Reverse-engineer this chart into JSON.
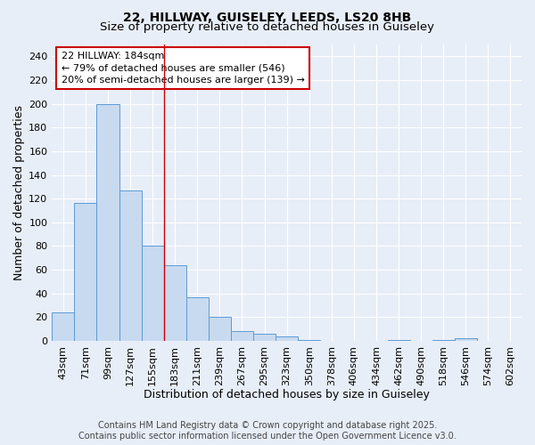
{
  "title1": "22, HILLWAY, GUISELEY, LEEDS, LS20 8HB",
  "title2": "Size of property relative to detached houses in Guiseley",
  "xlabel": "Distribution of detached houses by size in Guiseley",
  "ylabel": "Number of detached properties",
  "bins": [
    "43sqm",
    "71sqm",
    "99sqm",
    "127sqm",
    "155sqm",
    "183sqm",
    "211sqm",
    "239sqm",
    "267sqm",
    "295sqm",
    "323sqm",
    "350sqm",
    "378sqm",
    "406sqm",
    "434sqm",
    "462sqm",
    "490sqm",
    "518sqm",
    "546sqm",
    "574sqm",
    "602sqm"
  ],
  "values": [
    24,
    116,
    200,
    127,
    80,
    64,
    37,
    20,
    8,
    6,
    4,
    1,
    0,
    0,
    0,
    1,
    0,
    1,
    2,
    0,
    0
  ],
  "bar_color": "#c8daf0",
  "bar_edge_color": "#5b9bd5",
  "red_line_index": 5,
  "annotation_line1": "22 HILLWAY: 184sqm",
  "annotation_line2": "← 79% of detached houses are smaller (546)",
  "annotation_line3": "20% of semi-detached houses are larger (139) →",
  "annotation_box_color": "#ffffff",
  "annotation_box_edge_color": "#cc0000",
  "ylim": [
    0,
    250
  ],
  "yticks": [
    0,
    20,
    40,
    60,
    80,
    100,
    120,
    140,
    160,
    180,
    200,
    220,
    240
  ],
  "footer1": "Contains HM Land Registry data © Crown copyright and database right 2025.",
  "footer2": "Contains public sector information licensed under the Open Government Licence v3.0.",
  "background_color": "#e8eef8",
  "grid_color": "#ffffff",
  "title_fontsize": 10,
  "title2_fontsize": 9.5,
  "axis_label_fontsize": 9,
  "tick_fontsize": 8,
  "annotation_fontsize": 8,
  "footer_fontsize": 7
}
